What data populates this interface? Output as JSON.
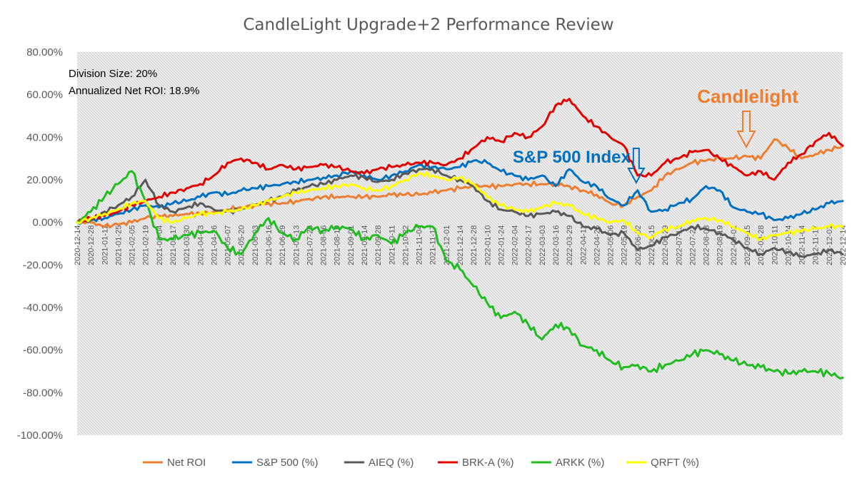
{
  "chart_data": {
    "type": "line",
    "title": "CandleLight Upgrade+2 Performance Review",
    "xlabel": "",
    "ylabel": "",
    "ylim": [
      -1.0,
      0.8
    ],
    "y_ticks": [
      "80.00%",
      "60.00%",
      "40.00%",
      "20.00%",
      "0.00%",
      "-20.00%",
      "-40.00%",
      "-60.00%",
      "-80.00%",
      "-100.00%"
    ],
    "x_ticks": [
      "2020-12-14",
      "2020-12-28",
      "2021-01-11",
      "2021-01-25",
      "2021-02-05",
      "2021-02-19",
      "2021-03-04",
      "2021-03-17",
      "2021-03-30",
      "2021-04-13",
      "2021-04-26",
      "2021-05-07",
      "2021-05-20",
      "2021-06-03",
      "2021-06-16",
      "2021-06-29",
      "2021-07-13",
      "2021-07-26",
      "2021-08-06",
      "2021-08-19",
      "2021-09-01",
      "2021-09-14",
      "2021-09-28",
      "2021-10-11",
      "2021-10-22",
      "2021-11-04",
      "2021-11-17",
      "2021-12-01",
      "2021-12-14",
      "2021-12-28",
      "2022-01-10",
      "2022-01-24",
      "2022-02-04",
      "2022-02-17",
      "2022-03-03",
      "2022-03-16",
      "2022-03-29",
      "2022-04-11",
      "2022-04-25",
      "2022-05-06",
      "2022-05-19",
      "2022-06-02",
      "2022-06-15",
      "2022-06-29",
      "2022-07-13",
      "2022-07-27",
      "2022-08-08",
      "2022-08-19",
      "2022-09-01",
      "2022-09-15",
      "2022-09-28",
      "2022-10-11",
      "2022-10-24",
      "2022-11-04",
      "2022-11-17",
      "2022-12-01",
      "2022-12-14"
    ],
    "grid": false,
    "legend_position": "bottom",
    "series": [
      {
        "name": "Net ROI",
        "color": "#ED7D31",
        "values": [
          0,
          0,
          -0.02,
          -0.01,
          0,
          0.02,
          0.03,
          0.03,
          0.04,
          0.04,
          0.05,
          0.06,
          0.07,
          0.08,
          0.09,
          0.09,
          0.1,
          0.11,
          0.12,
          0.12,
          0.12,
          0.12,
          0.12,
          0.13,
          0.13,
          0.13,
          0.14,
          0.15,
          0.16,
          0.17,
          0.17,
          0.17,
          0.18,
          0.18,
          0.18,
          0.18,
          0.17,
          0.15,
          0.13,
          0.09,
          0.08,
          0.12,
          0.15,
          0.22,
          0.25,
          0.28,
          0.29,
          0.3,
          0.3,
          0.31,
          0.3,
          0.39,
          0.35,
          0.3,
          0.32,
          0.34,
          0.36
        ]
      },
      {
        "name": "S&P 500 (%)",
        "color": "#0070C0",
        "values": [
          0,
          0.01,
          0.02,
          0.04,
          0.06,
          0.08,
          0.07,
          0.09,
          0.1,
          0.12,
          0.14,
          0.13,
          0.15,
          0.16,
          0.17,
          0.18,
          0.19,
          0.2,
          0.21,
          0.22,
          0.24,
          0.22,
          0.2,
          0.22,
          0.24,
          0.27,
          0.26,
          0.25,
          0.26,
          0.29,
          0.28,
          0.24,
          0.22,
          0.2,
          0.22,
          0.17,
          0.25,
          0.19,
          0.17,
          0.11,
          0.08,
          0.15,
          0.05,
          0.06,
          0.09,
          0.11,
          0.17,
          0.15,
          0.07,
          0.05,
          0.04,
          0.01,
          0.02,
          0.04,
          0.06,
          0.09,
          0.1
        ]
      },
      {
        "name": "AIEQ (%)",
        "color": "#595959",
        "values": [
          0,
          0.01,
          0.05,
          0.08,
          0.12,
          0.2,
          0.08,
          0.05,
          0.07,
          0.09,
          0.06,
          0.05,
          0.06,
          0.08,
          0.1,
          0.12,
          0.15,
          0.17,
          0.18,
          0.2,
          0.22,
          0.21,
          0.19,
          0.2,
          0.23,
          0.25,
          0.25,
          0.22,
          0.2,
          0.17,
          0.1,
          0.06,
          0.05,
          0.03,
          0.04,
          0.05,
          0.03,
          -0.02,
          -0.03,
          -0.06,
          -0.05,
          -0.13,
          -0.11,
          -0.07,
          -0.05,
          -0.02,
          -0.03,
          -0.05,
          -0.08,
          -0.12,
          -0.15,
          -0.12,
          -0.14,
          -0.16,
          -0.15,
          -0.13,
          -0.15
        ]
      },
      {
        "name": "BRK-A (%)",
        "color": "#E00000",
        "values": [
          0,
          0.02,
          0.03,
          0.05,
          0.08,
          0.1,
          0.12,
          0.14,
          0.16,
          0.18,
          0.22,
          0.28,
          0.3,
          0.28,
          0.25,
          0.27,
          0.25,
          0.26,
          0.27,
          0.26,
          0.24,
          0.23,
          0.25,
          0.26,
          0.27,
          0.28,
          0.28,
          0.27,
          0.3,
          0.35,
          0.4,
          0.38,
          0.42,
          0.4,
          0.45,
          0.55,
          0.58,
          0.5,
          0.45,
          0.4,
          0.36,
          0.22,
          0.22,
          0.28,
          0.3,
          0.33,
          0.34,
          0.3,
          0.26,
          0.22,
          0.24,
          0.2,
          0.28,
          0.32,
          0.38,
          0.42,
          0.36
        ]
      },
      {
        "name": "ARKK (%)",
        "color": "#22BB22",
        "values": [
          0,
          0.05,
          0.12,
          0.18,
          0.24,
          0.1,
          -0.08,
          -0.08,
          -0.06,
          -0.05,
          -0.04,
          -0.12,
          -0.15,
          -0.05,
          0.02,
          -0.05,
          -0.08,
          -0.02,
          -0.04,
          -0.02,
          -0.03,
          -0.08,
          -0.06,
          -0.1,
          -0.05,
          -0.02,
          -0.02,
          -0.18,
          -0.22,
          -0.3,
          -0.38,
          -0.45,
          -0.42,
          -0.48,
          -0.55,
          -0.48,
          -0.5,
          -0.58,
          -0.6,
          -0.65,
          -0.68,
          -0.67,
          -0.7,
          -0.67,
          -0.65,
          -0.62,
          -0.6,
          -0.62,
          -0.65,
          -0.67,
          -0.68,
          -0.7,
          -0.71,
          -0.7,
          -0.7,
          -0.71,
          -0.73
        ]
      },
      {
        "name": "QRFT (%)",
        "color": "#FFFF00",
        "values": [
          0,
          0.02,
          0.04,
          0.06,
          0.09,
          0.1,
          0.02,
          0.0,
          0.02,
          0.04,
          0.04,
          0.05,
          0.06,
          0.08,
          0.1,
          0.12,
          0.14,
          0.15,
          0.16,
          0.17,
          0.18,
          0.16,
          0.15,
          0.17,
          0.2,
          0.23,
          0.22,
          0.2,
          0.21,
          0.18,
          0.12,
          0.08,
          0.06,
          0.05,
          0.07,
          0.09,
          0.08,
          0.04,
          0.02,
          0.0,
          0.01,
          -0.05,
          -0.07,
          -0.03,
          -0.02,
          0.01,
          0.02,
          0.01,
          -0.02,
          -0.05,
          -0.08,
          -0.06,
          -0.05,
          -0.04,
          -0.03,
          -0.02,
          -0.02
        ]
      }
    ],
    "annotations": [
      {
        "text": "Division Size: 20%"
      },
      {
        "text": "Annualized Net ROI: 18.9%"
      },
      {
        "text": "Candlelight",
        "color": "#ED7D31",
        "x_index": 49,
        "y": 0.3
      },
      {
        "text": "S&P 500 Index",
        "color": "#0070C0",
        "x_index": 41,
        "y": 0.14
      }
    ]
  }
}
